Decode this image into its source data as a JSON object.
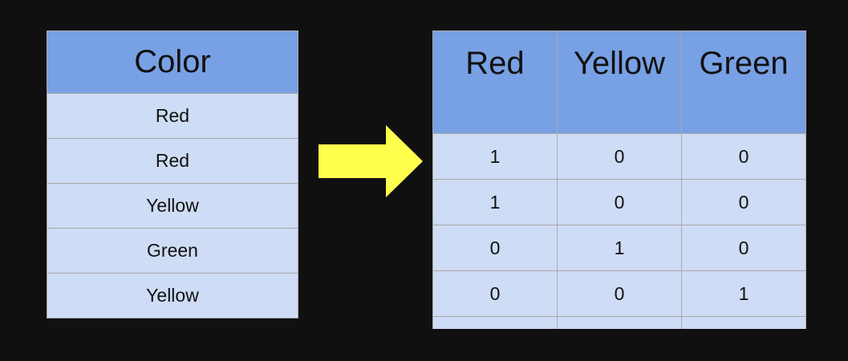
{
  "left_table": {
    "header": "Color",
    "rows": [
      "Red",
      "Red",
      "Yellow",
      "Green",
      "Yellow"
    ]
  },
  "right_table": {
    "headers": [
      "Red",
      "Yellow",
      "Green"
    ],
    "rows": [
      [
        "1",
        "0",
        "0"
      ],
      [
        "1",
        "0",
        "0"
      ],
      [
        "0",
        "1",
        "0"
      ],
      [
        "0",
        "0",
        "1"
      ],
      [
        "",
        "",
        ""
      ]
    ]
  },
  "colors": {
    "background": "#101010",
    "header_fill": "#78a0e4",
    "cell_fill": "#cfdcf5",
    "arrow_fill": "#ffff4d"
  }
}
